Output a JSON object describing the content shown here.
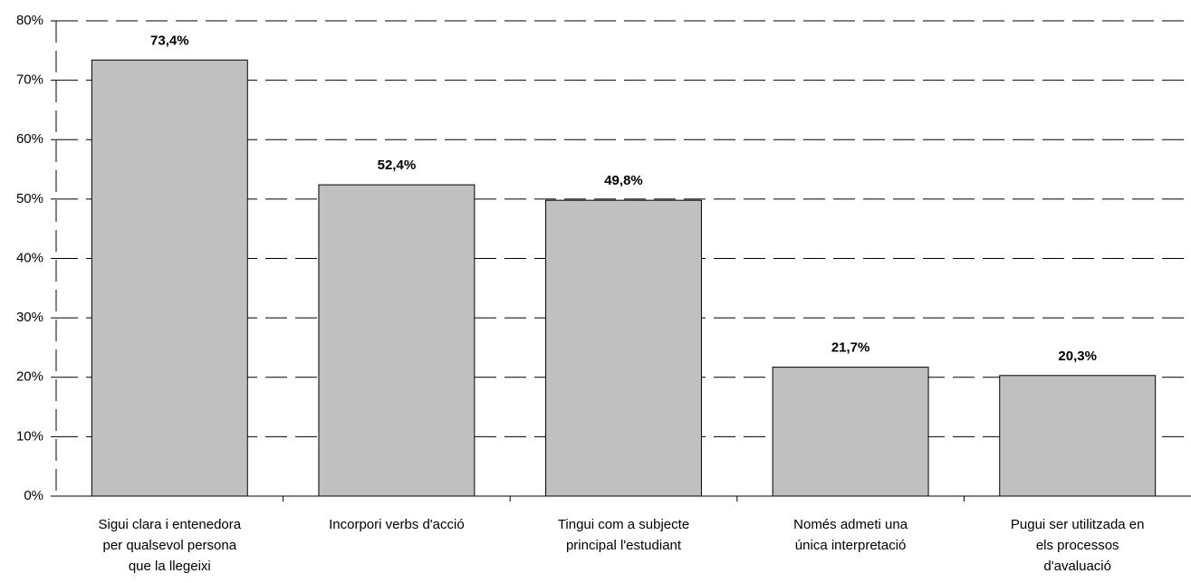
{
  "chart_data": {
    "type": "bar",
    "categories": [
      [
        "Sigui clara i entenedora",
        "per qualsevol persona",
        "que la llegeixi"
      ],
      [
        "Incorpori verbs d'acció"
      ],
      [
        "Tingui com a subjecte",
        "principal l'estudiant"
      ],
      [
        "Només admeti una",
        "única interpretació"
      ],
      [
        "Pugui ser utilitzada en",
        "els processos",
        "d'avaluació"
      ]
    ],
    "values": [
      73.4,
      52.4,
      49.8,
      21.7,
      20.3
    ],
    "value_labels": [
      "73,4%",
      "52,4%",
      "49,8%",
      "21,7%",
      "20,3%"
    ],
    "color": "#c0c0c0",
    "ylim": [
      0,
      80
    ],
    "yticks": [
      {
        "value": 0,
        "label": "0%"
      },
      {
        "value": 10,
        "label": "10%"
      },
      {
        "value": 20,
        "label": "20%"
      },
      {
        "value": 30,
        "label": "30%"
      },
      {
        "value": 40,
        "label": "40%"
      },
      {
        "value": 50,
        "label": "50%"
      },
      {
        "value": 60,
        "label": "60%"
      },
      {
        "value": 70,
        "label": "70%"
      },
      {
        "value": 80,
        "label": "80%"
      }
    ],
    "grid": true
  }
}
